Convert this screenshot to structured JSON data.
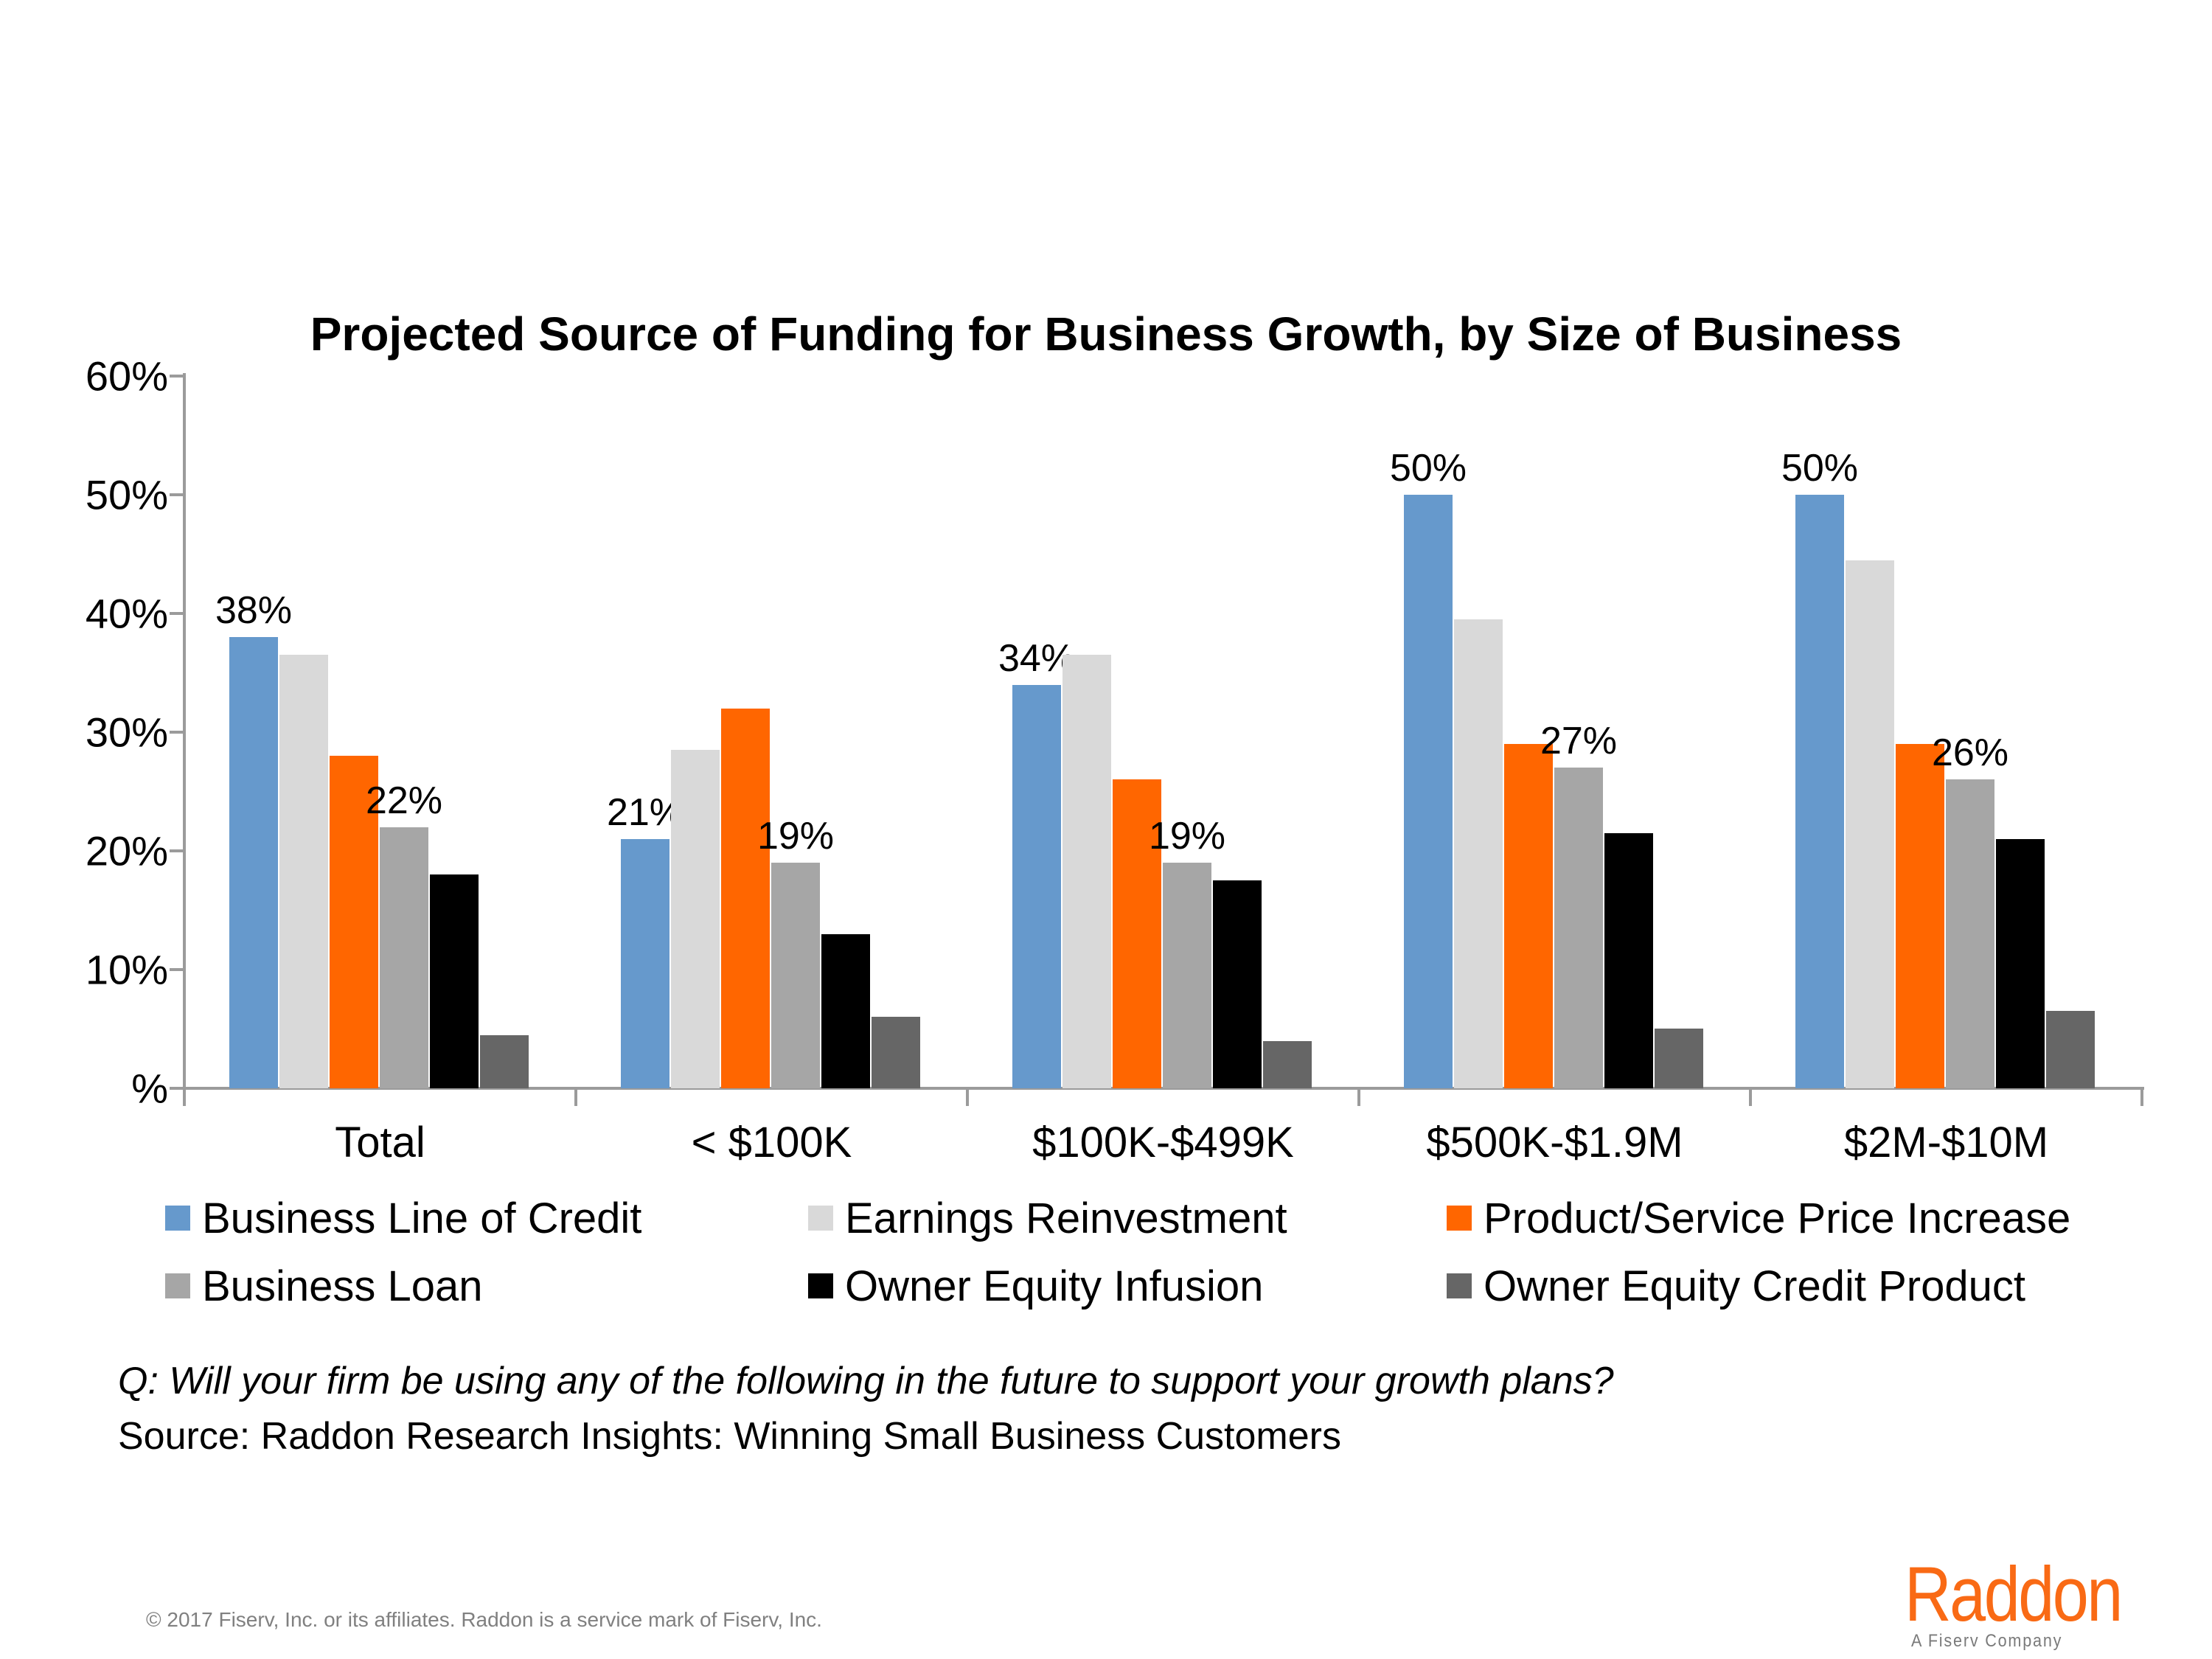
{
  "chart_data": {
    "type": "bar",
    "title": "Projected Source of Funding for Business Growth, by Size of Business",
    "categories": [
      "Total",
      "< $100K",
      "$100K-$499K",
      "$500K-$1.9M",
      "$2M-$10M"
    ],
    "series": [
      {
        "name": "Business Line of Credit",
        "color": "#6699CC",
        "values": [
          38,
          21,
          34,
          50,
          50
        ],
        "labels": [
          "38%",
          "21%",
          "34%",
          "50%",
          "50%"
        ]
      },
      {
        "name": "Earnings Reinvestment",
        "color": "#D9D9D9",
        "values": [
          36.5,
          28.5,
          36.5,
          39.5,
          44.5
        ],
        "labels": null
      },
      {
        "name": "Product/Service Price Increase",
        "color": "#FF6600",
        "values": [
          28,
          32,
          26,
          29,
          29
        ],
        "labels": null
      },
      {
        "name": "Business Loan",
        "color": "#A6A6A6",
        "values": [
          22,
          19,
          19,
          27,
          26
        ],
        "labels": [
          "22%",
          "19%",
          "19%",
          "27%",
          "26%"
        ]
      },
      {
        "name": "Owner Equity Infusion",
        "color": "#000000",
        "values": [
          18,
          13,
          17.5,
          21.5,
          21
        ],
        "labels": null
      },
      {
        "name": "Owner Equity Credit Product",
        "color": "#666666",
        "values": [
          4.5,
          6,
          4,
          5,
          6.5
        ],
        "labels": null
      }
    ],
    "y_ticks": [
      "60%",
      "50%",
      "40%",
      "30%",
      "20%",
      "10%",
      "%"
    ],
    "ylim": [
      0,
      60
    ],
    "grid": false,
    "legend_position": "bottom",
    "axis_color": "#9b9b9b"
  },
  "footer": {
    "question": "Q: Will your firm be using any of the following in the future to support your growth plans?",
    "source": "Source: Raddon Research Insights: Winning Small Business Customers",
    "copyright": "© 2017 Fiserv, Inc. or its affiliates. Raddon is a service mark of Fiserv, Inc."
  },
  "logo": {
    "name": "Raddon",
    "tagline": "A Fiserv Company",
    "accent_color": "#f96a15"
  }
}
